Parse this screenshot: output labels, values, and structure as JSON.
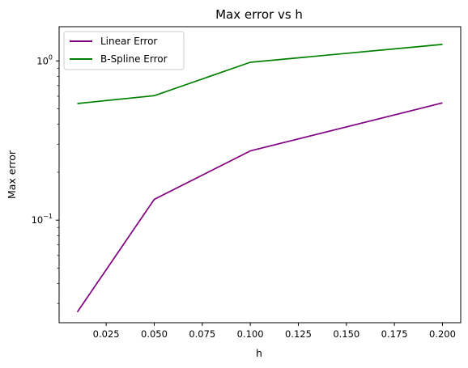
{
  "chart_data": {
    "type": "line",
    "title": "Max error vs h",
    "xlabel": "h",
    "ylabel": "Max error",
    "yscale": "log",
    "grid": false,
    "legend_position": "top-left",
    "x": [
      0.01,
      0.05,
      0.1,
      0.2
    ],
    "xlim": [
      0.0005,
      0.2095
    ],
    "ylim": [
      0.0227,
      1.64
    ],
    "xticks": [
      "0.025",
      "0.050",
      "0.075",
      "0.100",
      "0.125",
      "0.150",
      "0.175",
      "0.200"
    ],
    "yticks": [
      {
        "base": "10",
        "exp": "−1",
        "value": 0.1
      },
      {
        "base": "10",
        "exp": "0",
        "value": 1
      }
    ],
    "series": [
      {
        "name": "Linear Error",
        "color": "#800080",
        "values": [
          0.0265,
          0.135,
          0.272,
          0.545
        ]
      },
      {
        "name": "B-Spline Error",
        "color": "#008000",
        "values": [
          0.54,
          0.605,
          0.98,
          1.27
        ]
      }
    ]
  }
}
